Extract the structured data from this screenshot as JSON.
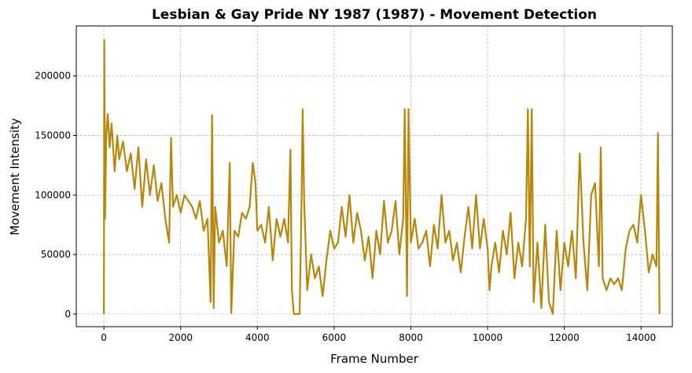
{
  "chart_data": {
    "type": "line",
    "title": "Lesbian & Gay Pride NY 1987 (1987) - Movement Detection",
    "x_label": "Frame Number",
    "y_label": "Movement Intensity",
    "x": [
      0,
      10,
      30,
      60,
      100,
      150,
      200,
      280,
      350,
      400,
      500,
      600,
      700,
      800,
      900,
      1000,
      1100,
      1200,
      1300,
      1400,
      1500,
      1600,
      1700,
      1750,
      1800,
      1900,
      2000,
      2100,
      2200,
      2300,
      2400,
      2500,
      2600,
      2700,
      2780,
      2820,
      2860,
      2900,
      3000,
      3100,
      3200,
      3280,
      3320,
      3400,
      3500,
      3600,
      3700,
      3800,
      3880,
      3950,
      4000,
      4100,
      4200,
      4300,
      4400,
      4500,
      4600,
      4700,
      4800,
      4860,
      4900,
      4950,
      5100,
      5150,
      5180,
      5220,
      5300,
      5400,
      5500,
      5600,
      5700,
      5800,
      5900,
      6000,
      6100,
      6200,
      6300,
      6400,
      6500,
      6600,
      6700,
      6800,
      6900,
      7000,
      7100,
      7200,
      7300,
      7400,
      7500,
      7600,
      7700,
      7800,
      7840,
      7900,
      7940,
      8000,
      8100,
      8200,
      8300,
      8400,
      8500,
      8600,
      8700,
      8800,
      8900,
      9000,
      9100,
      9200,
      9300,
      9400,
      9500,
      9600,
      9700,
      9800,
      9900,
      10000,
      10050,
      10100,
      10200,
      10300,
      10400,
      10500,
      10600,
      10700,
      10800,
      10900,
      11000,
      11050,
      11100,
      11150,
      11200,
      11300,
      11400,
      11500,
      11600,
      11700,
      11800,
      11900,
      12000,
      12100,
      12200,
      12300,
      12400,
      12500,
      12600,
      12700,
      12800,
      12900,
      12950,
      13000,
      13100,
      13200,
      13300,
      13400,
      13500,
      13600,
      13700,
      13800,
      13900,
      14000,
      14100,
      14200,
      14300,
      14400,
      14440,
      14480
    ],
    "series": [
      {
        "name": "Movement Intensity",
        "color": "#b8860b",
        "values": [
          0,
          230000,
          80000,
          150000,
          168000,
          140000,
          160000,
          120000,
          150000,
          130000,
          145000,
          120000,
          135000,
          105000,
          140000,
          90000,
          130000,
          100000,
          125000,
          95000,
          110000,
          80000,
          60000,
          148000,
          90000,
          100000,
          85000,
          100000,
          95000,
          90000,
          80000,
          95000,
          70000,
          80000,
          10000,
          167000,
          5000,
          90000,
          60000,
          70000,
          40000,
          127000,
          1000,
          70000,
          65000,
          85000,
          80000,
          90000,
          127000,
          110000,
          70000,
          75000,
          60000,
          90000,
          45000,
          80000,
          65000,
          80000,
          60000,
          138000,
          20000,
          0,
          0,
          90000,
          172000,
          95000,
          20000,
          50000,
          30000,
          40000,
          15000,
          45000,
          70000,
          55000,
          60000,
          90000,
          65000,
          100000,
          60000,
          85000,
          70000,
          45000,
          65000,
          30000,
          70000,
          50000,
          95000,
          60000,
          70000,
          95000,
          50000,
          80000,
          172000,
          15000,
          172000,
          60000,
          80000,
          55000,
          60000,
          70000,
          40000,
          75000,
          55000,
          100000,
          60000,
          70000,
          45000,
          60000,
          35000,
          65000,
          90000,
          55000,
          100000,
          55000,
          80000,
          55000,
          20000,
          40000,
          60000,
          35000,
          70000,
          50000,
          85000,
          30000,
          60000,
          40000,
          80000,
          172000,
          40000,
          172000,
          10000,
          60000,
          5000,
          75000,
          10000,
          0,
          70000,
          20000,
          60000,
          40000,
          70000,
          30000,
          135000,
          60000,
          20000,
          100000,
          110000,
          40000,
          140000,
          30000,
          20000,
          30000,
          25000,
          30000,
          20000,
          55000,
          70000,
          75000,
          60000,
          100000,
          70000,
          35000,
          50000,
          40000,
          152000,
          0
        ]
      }
    ],
    "xlim": [
      -720,
      14815
    ],
    "ylim": [
      -10600,
      242000
    ],
    "xticks": [
      0,
      2000,
      4000,
      6000,
      8000,
      10000,
      12000,
      14000
    ],
    "yticks": [
      0,
      50000,
      100000,
      150000,
      200000
    ],
    "grid": true
  }
}
